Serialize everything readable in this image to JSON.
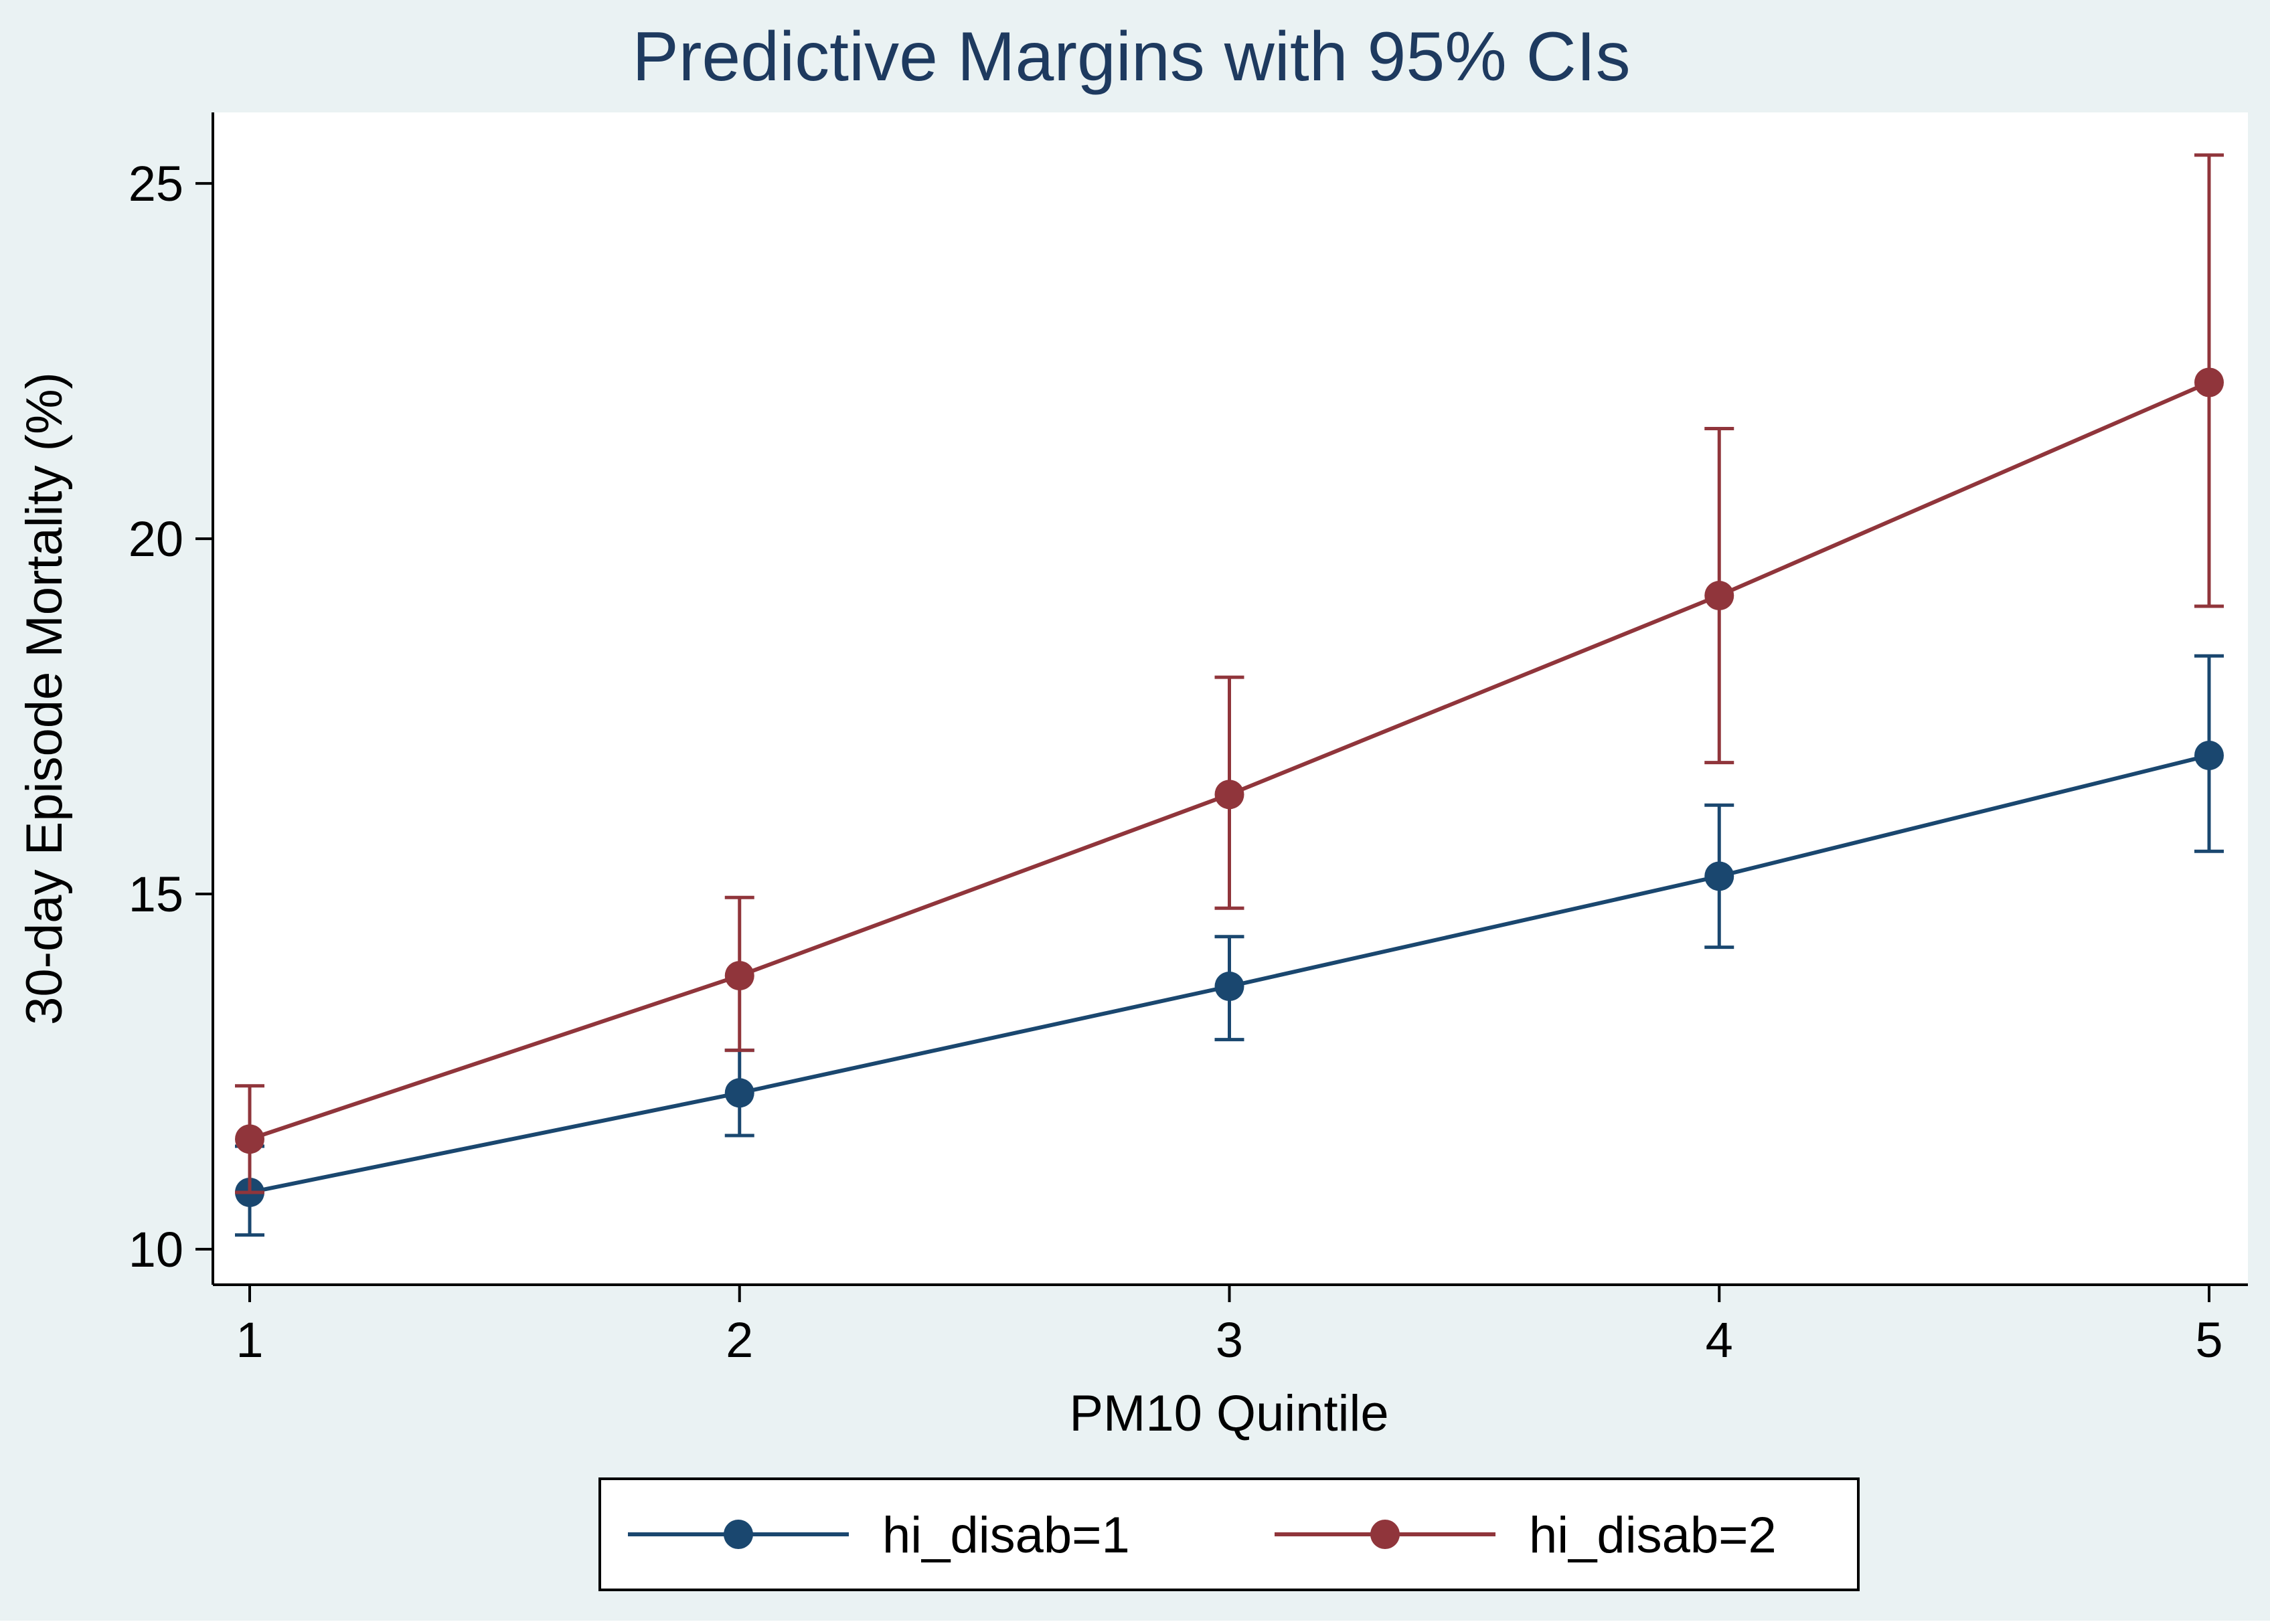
{
  "chart_data": {
    "type": "line",
    "title": "Predictive Margins with 95% CIs",
    "xlabel": "PM10 Quintile",
    "ylabel": "30-day Episode Mortality (%)",
    "categories": [
      "1",
      "2",
      "3",
      "4",
      "5"
    ],
    "x": [
      1,
      2,
      3,
      4,
      5
    ],
    "xlim": [
      1,
      5
    ],
    "ylim": [
      9.5,
      26
    ],
    "yticks": [
      10,
      15,
      20,
      25
    ],
    "grid": false,
    "legend_position": "bottom",
    "series": [
      {
        "name": "hi_disab=1",
        "color": "#1a476f",
        "values": [
          10.8,
          12.2,
          13.7,
          15.25,
          16.95
        ],
        "ci_low": [
          10.2,
          11.6,
          12.95,
          14.25,
          15.6
        ],
        "ci_high": [
          11.45,
          12.8,
          14.4,
          16.25,
          18.35
        ]
      },
      {
        "name": "hi_disab=2",
        "color": "#90353b",
        "values": [
          11.55,
          13.85,
          16.4,
          19.2,
          22.2
        ],
        "ci_low": [
          10.8,
          12.8,
          14.8,
          16.85,
          19.05
        ],
        "ci_high": [
          12.3,
          14.95,
          18.05,
          21.55,
          25.4
        ]
      }
    ]
  }
}
